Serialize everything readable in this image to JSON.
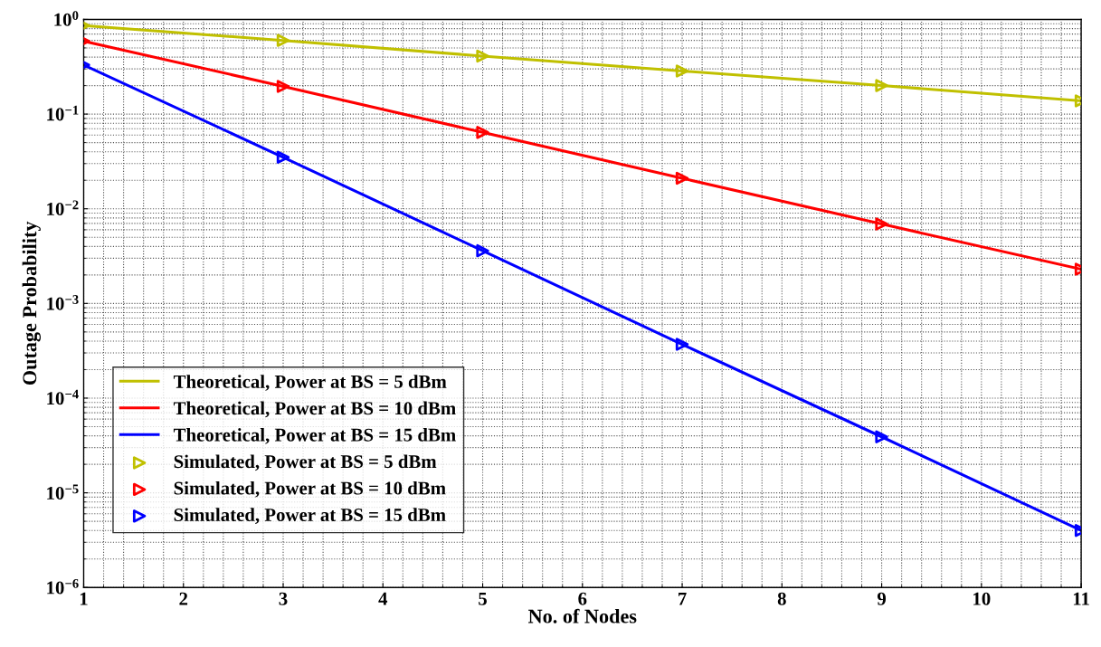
{
  "chart_data": {
    "type": "line",
    "xlabel": "No. of Nodes",
    "ylabel": "Outage Probability",
    "x": [
      1,
      3,
      5,
      7,
      9,
      11
    ],
    "series": [
      {
        "name": "Theoretical, Power at BS = 5 dBm",
        "color": "#c0c000",
        "marker": "none",
        "values": [
          0.86,
          0.6,
          0.41,
          0.285,
          0.2,
          0.138
        ]
      },
      {
        "name": "Theoretical, Power at BS = 10 dBm",
        "color": "#ff0000",
        "marker": "none",
        "values": [
          0.59,
          0.196,
          0.064,
          0.021,
          0.0069,
          0.0023
        ]
      },
      {
        "name": "Theoretical, Power at BS = 15 dBm",
        "color": "#0000ff",
        "marker": "none",
        "values": [
          0.33,
          0.035,
          0.0036,
          0.00037,
          3.9e-05,
          4e-06
        ]
      },
      {
        "name": "Simulated, Power at BS = 5 dBm",
        "color": "#c0c000",
        "type": "scatter",
        "marker": "triangle",
        "values": [
          0.86,
          0.6,
          0.41,
          0.285,
          0.2,
          0.138
        ]
      },
      {
        "name": "Simulated, Power at BS = 10 dBm",
        "color": "#ff0000",
        "type": "scatter",
        "marker": "triangle",
        "values": [
          0.59,
          0.196,
          0.064,
          0.021,
          0.0069,
          0.0023
        ]
      },
      {
        "name": "Simulated, Power at BS = 15 dBm",
        "color": "#0000ff",
        "type": "scatter",
        "marker": "triangle",
        "values": [
          0.33,
          0.035,
          0.0036,
          0.00037,
          3.9e-05,
          4e-06
        ]
      }
    ],
    "log": "y",
    "xlim": [
      1,
      11
    ],
    "xticks": [
      1,
      2,
      3,
      4,
      5,
      6,
      7,
      8,
      9,
      10,
      11
    ],
    "ylim": [
      1e-06,
      1
    ],
    "yticks": [
      {
        "value": 1e-06,
        "label": "10$^{−6}$"
      },
      {
        "value": 1e-05,
        "label": "10$^{−5}$"
      },
      {
        "value": 0.0001,
        "label": "10$^{−4}$"
      },
      {
        "value": 0.001,
        "label": "10$^{−3}$"
      },
      {
        "value": 0.01,
        "label": "10$^{−2}$"
      },
      {
        "value": 0.1,
        "label": "10$^{−1}$"
      },
      {
        "value": 1,
        "label": "10$^{0}$"
      }
    ],
    "grid": true,
    "legend": "bottom left"
  }
}
